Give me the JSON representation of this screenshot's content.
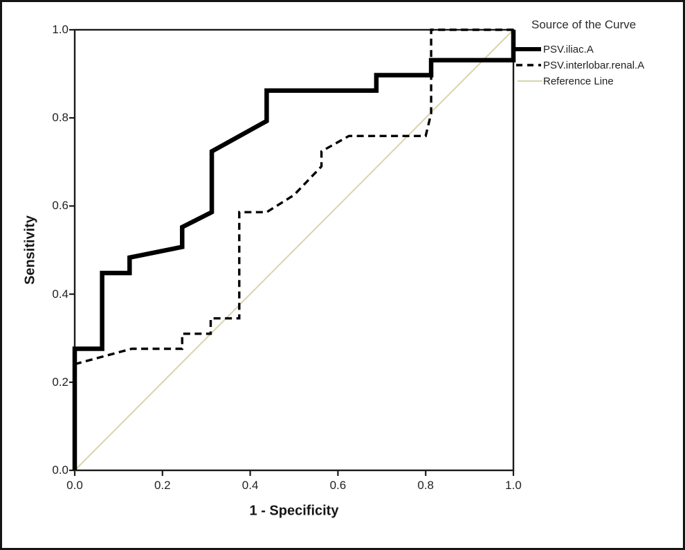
{
  "figure": {
    "xlabel": "1 - Specificity",
    "ylabel": "Sensitivity"
  },
  "legend": {
    "title": "Source of the Curve",
    "items": [
      {
        "label": "PSV.iliac.A",
        "style": "solid-thick",
        "color": "#000000"
      },
      {
        "label": "PSV.interlobar.renal.A",
        "style": "dashed",
        "color": "#000000"
      },
      {
        "label": "Reference Line",
        "style": "solid-thin",
        "color": "#d8d4ab"
      }
    ]
  },
  "chart_data": {
    "type": "line",
    "subtype": "roc-curve",
    "title": "",
    "xlabel": "1 - Specificity",
    "ylabel": "Sensitivity",
    "xlim": [
      0,
      1
    ],
    "ylim": [
      0,
      1
    ],
    "x_ticks": [
      "0.0",
      "0.2",
      "0.4",
      "0.6",
      "0.8",
      "1.0"
    ],
    "y_ticks": [
      "0.0",
      "0.2",
      "0.4",
      "0.6",
      "0.8",
      "1.0"
    ],
    "grid": false,
    "legend_title": "Source of the Curve",
    "legend_position": "outside-top-right",
    "frame_color": "#1a1a1a",
    "series": [
      {
        "name": "PSV.iliac.A",
        "line": "solid",
        "width": 6.5,
        "color": "#000000",
        "points": [
          [
            0,
            0
          ],
          [
            0,
            0.276
          ],
          [
            0.0625,
            0.276
          ],
          [
            0.0625,
            0.448
          ],
          [
            0.125,
            0.448
          ],
          [
            0.125,
            0.483
          ],
          [
            0.245,
            0.507
          ],
          [
            0.245,
            0.552
          ],
          [
            0.3125,
            0.586
          ],
          [
            0.3125,
            0.724
          ],
          [
            0.4375,
            0.793
          ],
          [
            0.4375,
            0.862
          ],
          [
            0.6875,
            0.862
          ],
          [
            0.6875,
            0.897
          ],
          [
            0.8125,
            0.897
          ],
          [
            0.8125,
            0.931
          ],
          [
            1,
            0.931
          ],
          [
            1,
            1
          ]
        ]
      },
      {
        "name": "PSV.interlobar.renal.A",
        "line": "dashed",
        "width": 3.4,
        "color": "#000000",
        "points": [
          [
            0,
            0.241
          ],
          [
            0.13,
            0.276
          ],
          [
            0.245,
            0.276
          ],
          [
            0.245,
            0.31
          ],
          [
            0.31,
            0.31
          ],
          [
            0.31,
            0.345
          ],
          [
            0.375,
            0.345
          ],
          [
            0.375,
            0.586
          ],
          [
            0.4375,
            0.586
          ],
          [
            0.5,
            0.625
          ],
          [
            0.5625,
            0.69
          ],
          [
            0.5625,
            0.724
          ],
          [
            0.625,
            0.759
          ],
          [
            0.8,
            0.759
          ],
          [
            0.8125,
            0.81
          ],
          [
            0.8125,
            1
          ],
          [
            1,
            1
          ]
        ]
      },
      {
        "name": "Reference Line",
        "line": "solid",
        "width": 2,
        "color": "#d8d4ab",
        "points": [
          [
            0,
            0
          ],
          [
            1,
            1
          ]
        ]
      }
    ]
  }
}
